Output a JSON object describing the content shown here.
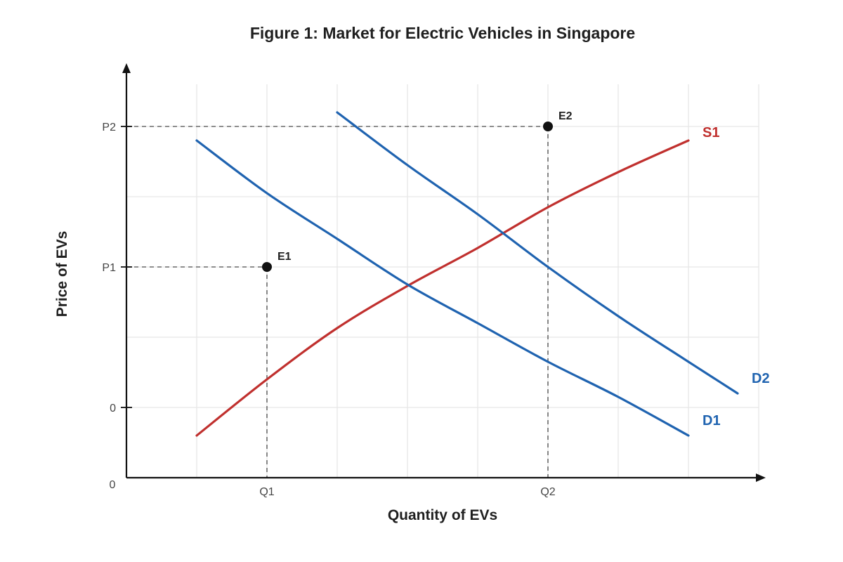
{
  "chart_data": {
    "type": "line",
    "title": "Figure 1: Market for Electric Vehicles in Singapore",
    "xlabel": "Quantity of EVs",
    "ylabel": "Price of EVs",
    "xlim": [
      0,
      9
    ],
    "ylim": [
      -1,
      5
    ],
    "grid": true,
    "axis_arrows": true,
    "x_ticks": [
      {
        "label": "Q1",
        "value": 2
      },
      {
        "label": "Q2",
        "value": 6
      }
    ],
    "y_ticks": [
      {
        "label": "0",
        "value": 0
      },
      {
        "label": "P1",
        "value": 2
      },
      {
        "label": "P2",
        "value": 4
      }
    ],
    "origin_label": "0",
    "series": [
      {
        "name": "S1",
        "color": "#c0302e",
        "points": [
          [
            1,
            -0.4
          ],
          [
            2,
            0.4
          ],
          [
            3,
            1.13
          ],
          [
            4,
            1.73
          ],
          [
            5,
            2.27
          ],
          [
            6,
            2.85
          ],
          [
            7,
            3.35
          ],
          [
            8,
            3.8
          ]
        ]
      },
      {
        "name": "D1",
        "color": "#1f63b0",
        "points": [
          [
            1,
            3.8
          ],
          [
            2,
            3.05
          ],
          [
            3,
            2.4
          ],
          [
            4,
            1.75
          ],
          [
            5,
            1.2
          ],
          [
            6,
            0.65
          ],
          [
            7,
            0.15
          ],
          [
            8,
            -0.4
          ]
        ]
      },
      {
        "name": "D2",
        "color": "#1f63b0",
        "points": [
          [
            3,
            4.2
          ],
          [
            4,
            3.45
          ],
          [
            5,
            2.75
          ],
          [
            6,
            2.0
          ],
          [
            7,
            1.3
          ],
          [
            8,
            0.65
          ],
          [
            8.7,
            0.2
          ]
        ]
      }
    ],
    "points": [
      {
        "label": "E1",
        "x": 2,
        "y": 2
      },
      {
        "label": "E2",
        "x": 6,
        "y": 4
      }
    ]
  }
}
